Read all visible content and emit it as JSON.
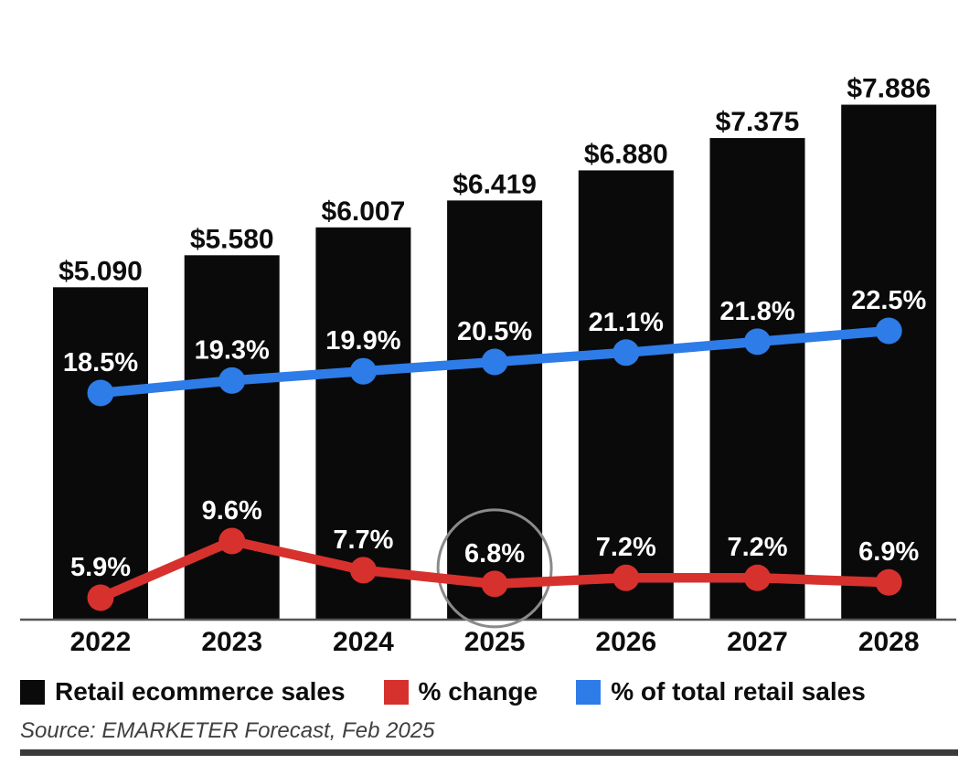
{
  "chart_data": {
    "type": "bar",
    "subtype": "bar-line-combo",
    "categories": [
      "2022",
      "2023",
      "2024",
      "2025",
      "2026",
      "2027",
      "2028"
    ],
    "series": [
      {
        "name": "Retail ecommerce sales",
        "type": "bar",
        "color": "#0a0a0a",
        "values": [
          5.09,
          5.58,
          6.007,
          6.419,
          6.88,
          7.375,
          7.886
        ],
        "labels": [
          "$5.090",
          "$5.580",
          "$6.007",
          "$6.419",
          "$6.880",
          "$7.375",
          "$7.886"
        ],
        "label_color": "#0d0d0d"
      },
      {
        "name": "% change",
        "type": "line",
        "color": "#d7312e",
        "values": [
          5.9,
          9.6,
          7.7,
          6.8,
          7.2,
          7.2,
          6.9
        ],
        "labels": [
          "5.9%",
          "9.6%",
          "7.7%",
          "6.8%",
          "7.2%",
          "7.2%",
          "6.9%"
        ],
        "label_color": "#ffffff"
      },
      {
        "name": "% of total retail sales",
        "type": "line",
        "color": "#2e7ce8",
        "values": [
          18.5,
          19.3,
          19.9,
          20.5,
          21.1,
          21.8,
          22.5
        ],
        "labels": [
          "18.5%",
          "19.3%",
          "19.9%",
          "20.5%",
          "21.1%",
          "21.8%",
          "22.5%"
        ],
        "label_color": "#ffffff"
      }
    ],
    "annotation": {
      "type": "circle",
      "target_series": "% change",
      "target_category": "2025",
      "target_label": "6.8%",
      "stroke_color": "#8a8a8a"
    },
    "title": "",
    "xlabel": "",
    "ylabel": "",
    "grid": false,
    "legend_position": "bottom",
    "axis_line_color": "#555555",
    "x_tick_color": "#0d0d0d"
  },
  "legend": {
    "items": [
      {
        "label": "Retail ecommerce sales",
        "color": "#0a0a0a"
      },
      {
        "label": "% change",
        "color": "#d7312e"
      },
      {
        "label": "% of total retail sales",
        "color": "#2e7ce8"
      }
    ]
  },
  "source": {
    "text": "Source: EMARKETER Forecast, Feb 2025"
  }
}
